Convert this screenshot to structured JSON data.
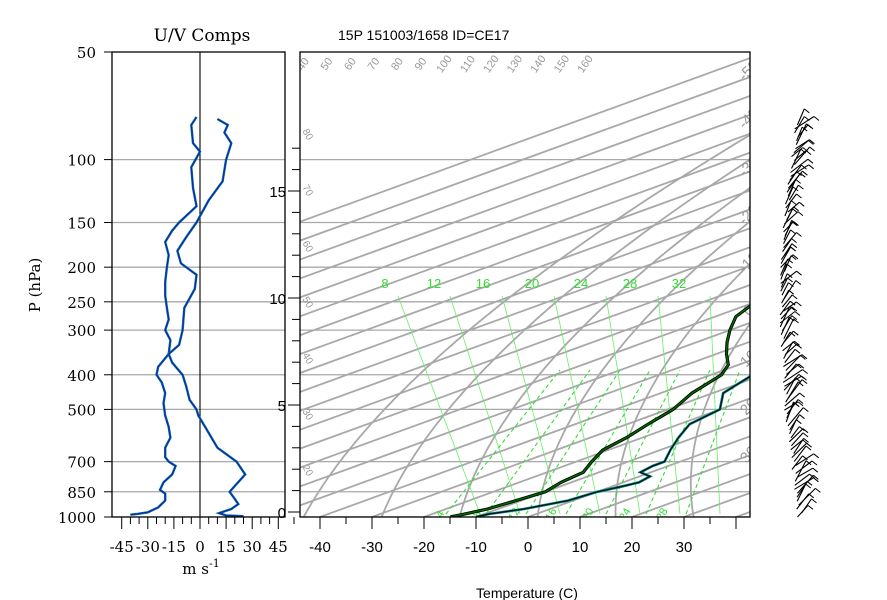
{
  "chart_data": [
    {
      "type": "line",
      "title": "U/V Comps",
      "xlabel": "m s",
      "xlabel_exp": "-1",
      "ylabel": "P (hPa)",
      "xlim": [
        -50,
        50
      ],
      "ylim": [
        1000,
        50
      ],
      "y_scale": "log",
      "grid": true,
      "x_ticks": [
        -45,
        -30,
        -15,
        0,
        15,
        30,
        45
      ],
      "x_tick_labels": [
        "-45",
        "-30",
        "-15",
        "0",
        "15",
        "30",
        "45"
      ],
      "y_ticks": [
        1000,
        850,
        700,
        500,
        400,
        300,
        250,
        200,
        150,
        100,
        50
      ],
      "y_tick_labels": [
        "1000",
        "850",
        "700",
        "500",
        "400",
        "300",
        "250",
        "200",
        "150",
        "100",
        "50"
      ],
      "series": [
        {
          "color": "#1a1acc",
          "points": [
            [
              -40,
              985
            ],
            [
              -36,
              980
            ],
            [
              -30,
              970
            ],
            [
              -24,
              940
            ],
            [
              -20,
              900
            ],
            [
              -20,
              860
            ],
            [
              -23,
              840
            ],
            [
              -21,
              800
            ],
            [
              -16,
              760
            ],
            [
              -14,
              720
            ],
            [
              -18,
              700
            ],
            [
              -20,
              680
            ],
            [
              -20,
              640
            ],
            [
              -17,
              600
            ],
            [
              -18,
              560
            ],
            [
              -20,
              520
            ],
            [
              -21,
              480
            ],
            [
              -20,
              450
            ],
            [
              -22,
              420
            ],
            [
              -25,
              400
            ],
            [
              -24,
              380
            ],
            [
              -18,
              350
            ],
            [
              -17,
              320
            ],
            [
              -20,
              300
            ],
            [
              -18,
              280
            ],
            [
              -19,
              260
            ],
            [
              -20,
              240
            ],
            [
              -20,
              220
            ],
            [
              -19,
              200
            ],
            [
              -18,
              185
            ],
            [
              -20,
              170
            ],
            [
              -16,
              158
            ],
            [
              -12,
              150
            ],
            [
              -2,
              135
            ],
            [
              -4,
              120
            ],
            [
              -5,
              105
            ],
            [
              0,
              95
            ],
            [
              -4,
              90
            ],
            [
              -5,
              80
            ],
            [
              -2,
              76
            ]
          ]
        },
        {
          "color": "#1a1acc",
          "points": [
            [
              25,
              995
            ],
            [
              15,
              990
            ],
            [
              11,
              975
            ],
            [
              18,
              950
            ],
            [
              22,
              920
            ],
            [
              20,
              890
            ],
            [
              17,
              850
            ],
            [
              26,
              760
            ],
            [
              21,
              700
            ],
            [
              10,
              640
            ],
            [
              3,
              560
            ],
            [
              -1,
              520
            ],
            [
              -2,
              500
            ],
            [
              -6,
              470
            ],
            [
              -8,
              430
            ],
            [
              -10,
              400
            ],
            [
              -16,
              370
            ],
            [
              -18,
              350
            ],
            [
              -12,
              330
            ],
            [
              -10,
              300
            ],
            [
              -9,
              260
            ],
            [
              -3,
              230
            ],
            [
              -2,
              210
            ],
            [
              -11,
              195
            ],
            [
              -13,
              180
            ],
            [
              -8,
              165
            ],
            [
              -2,
              150
            ],
            [
              5,
              130
            ],
            [
              13,
              115
            ],
            [
              15,
              100
            ],
            [
              18,
              90
            ],
            [
              14,
              84
            ],
            [
              16,
              80
            ],
            [
              10,
              77
            ]
          ]
        }
      ]
    },
    {
      "type": "line",
      "title": "15P 151003/1658 ID=CE17",
      "xlabel": "Temperature (C)",
      "xlim": [
        -45,
        40
      ],
      "x_ticks": [
        -40,
        -30,
        -20,
        -10,
        0,
        10,
        20,
        30
      ],
      "x_tick_labels": [
        "-40",
        "-30",
        "-20",
        "-10",
        "0",
        "10",
        "20",
        "30"
      ],
      "y_scale": "log",
      "grid": true,
      "height_axis_ticks": [
        {
          "km": 0,
          "label": "0"
        },
        {
          "km": 5,
          "label": "5"
        },
        {
          "km": 10,
          "label": "10"
        },
        {
          "km": 15,
          "label": "15"
        }
      ],
      "dry_adiabat_labels": [
        "40",
        "50",
        "60",
        "70",
        "80",
        "90",
        "100",
        "110",
        "120",
        "130",
        "140",
        "150",
        "160"
      ],
      "isotherm_labels": [
        "-50",
        "-40",
        "-30",
        "-20",
        "-10",
        "0",
        "10",
        "20",
        "30"
      ],
      "mixing_ratio_labels": [
        "8",
        "12",
        "16",
        "20",
        "24",
        "28",
        "32"
      ],
      "moist_adiabat_labels": [
        "4",
        "8",
        "12",
        "16",
        "20",
        "24",
        "28"
      ],
      "left_height_labels": [
        "80",
        "70",
        "60",
        "50",
        "40",
        "30",
        "20"
      ],
      "series": [
        {
          "name": "temperature",
          "color": "#000000",
          "points": [
            [
              -10,
              999
            ],
            [
              -9,
              980
            ],
            [
              -5,
              950
            ],
            [
              -1,
              900
            ],
            [
              0,
              850
            ],
            [
              2,
              820
            ],
            [
              3,
              800
            ],
            [
              2,
              770
            ],
            [
              -2,
              750
            ],
            [
              -3,
              720
            ],
            [
              -3,
              700
            ],
            [
              -8,
              650
            ],
            [
              -13,
              600
            ],
            [
              -18,
              550
            ],
            [
              -20,
              500
            ],
            [
              -28,
              450
            ],
            [
              -32,
              400
            ],
            [
              -38,
              350
            ],
            [
              -44,
              300
            ],
            [
              -48,
              250
            ],
            [
              -54,
              220
            ],
            [
              -60,
              200
            ],
            [
              -64,
              175
            ],
            [
              -70,
              150
            ],
            [
              -74,
              135
            ],
            [
              -78,
              120
            ],
            [
              -80,
              110
            ],
            [
              -80,
              100
            ],
            [
              -84,
              92
            ],
            [
              -88,
              88
            ],
            [
              -70,
              86
            ],
            [
              -60,
              84
            ],
            [
              -50,
              80
            ],
            [
              -40,
              78
            ]
          ]
        },
        {
          "name": "dewpoint",
          "color": "#006600",
          "points": [
            [
              -15,
              999
            ],
            [
              -14,
              985
            ],
            [
              -12,
              950
            ],
            [
              -11,
              900
            ],
            [
              -10,
              850
            ],
            [
              -12,
              800
            ],
            [
              -13,
              750
            ],
            [
              -17,
              700
            ],
            [
              -21,
              650
            ],
            [
              -23,
              600
            ],
            [
              -26,
              550
            ],
            [
              -29,
              500
            ],
            [
              -34,
              450
            ],
            [
              -38,
              400
            ],
            [
              -42,
              375
            ],
            [
              -48,
              350
            ],
            [
              -54,
              325
            ],
            [
              -60,
              300
            ],
            [
              -66,
              275
            ],
            [
              -70,
              250
            ],
            [
              -73,
              235
            ],
            [
              -75,
              225
            ]
          ]
        }
      ]
    },
    {
      "type": "wind_barbs",
      "count": 100,
      "p_range": [
        1000,
        80
      ]
    }
  ]
}
